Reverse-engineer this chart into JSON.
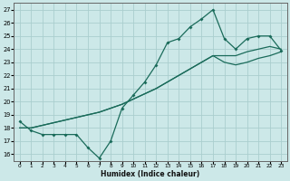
{
  "title": "",
  "xlabel": "Humidex (Indice chaleur)",
  "bg_color": "#cce8e8",
  "grid_color": "#aacece",
  "line_color": "#1a6b5a",
  "xlim": [
    -0.5,
    23.5
  ],
  "ylim": [
    15.5,
    27.5
  ],
  "xticks": [
    0,
    1,
    2,
    3,
    4,
    5,
    6,
    7,
    8,
    9,
    10,
    11,
    12,
    13,
    14,
    15,
    16,
    17,
    18,
    19,
    20,
    21,
    22,
    23
  ],
  "yticks": [
    16,
    17,
    18,
    19,
    20,
    21,
    22,
    23,
    24,
    25,
    26,
    27
  ],
  "line1_x": [
    0,
    1,
    2,
    3,
    4,
    5,
    6,
    7,
    8,
    9,
    10,
    11,
    12,
    13,
    14,
    15,
    16,
    17,
    18,
    19,
    20,
    21,
    22,
    23
  ],
  "line1_y": [
    18.5,
    17.8,
    17.5,
    17.5,
    17.5,
    17.5,
    16.5,
    15.7,
    17.0,
    19.5,
    20.5,
    21.5,
    22.8,
    24.5,
    24.8,
    25.7,
    26.3,
    27.0,
    24.8,
    24.0,
    24.8,
    25.0,
    25.0,
    23.9
  ],
  "line2_x": [
    0,
    1,
    2,
    3,
    4,
    5,
    6,
    7,
    8,
    9,
    10,
    11,
    12,
    13,
    14,
    15,
    16,
    17,
    18,
    19,
    20,
    21,
    22,
    23
  ],
  "line2_y": [
    18.0,
    18.0,
    18.2,
    18.4,
    18.6,
    18.8,
    19.0,
    19.2,
    19.5,
    19.8,
    20.2,
    20.6,
    21.0,
    21.5,
    22.0,
    22.5,
    23.0,
    23.5,
    23.5,
    23.5,
    23.8,
    24.0,
    24.2,
    24.0
  ],
  "line3_x": [
    0,
    1,
    2,
    3,
    4,
    5,
    6,
    7,
    8,
    9,
    10,
    11,
    12,
    13,
    14,
    15,
    16,
    17,
    18,
    19,
    20,
    21,
    22,
    23
  ],
  "line3_y": [
    18.0,
    18.0,
    18.2,
    18.4,
    18.6,
    18.8,
    19.0,
    19.2,
    19.5,
    19.8,
    20.2,
    20.6,
    21.0,
    21.5,
    22.0,
    22.5,
    23.0,
    23.5,
    23.0,
    22.8,
    23.0,
    23.3,
    23.5,
    23.8
  ]
}
